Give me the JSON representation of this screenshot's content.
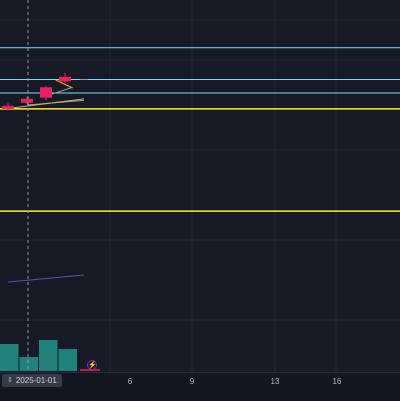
{
  "chart_data": {
    "type": "candlestick",
    "x_axis": {
      "tick_labels": [
        "6",
        "9",
        "13",
        "16"
      ],
      "crosshair_label": "2025-01-01"
    },
    "candles": [
      {
        "open": 91.0,
        "high": 92.4,
        "low": 88.6,
        "close": 89.4
      },
      {
        "open": 94.6,
        "high": 95.6,
        "low": 92.0,
        "close": 92.6
      },
      {
        "open": 100.6,
        "high": 101.4,
        "low": 93.8,
        "close": 95.2
      },
      {
        "open": 106.0,
        "high": 108.0,
        "low": 102.6,
        "close": 103.6
      }
    ],
    "horizontal_lines": [
      {
        "value": 121.0,
        "color": "#80d8ff"
      },
      {
        "value": 104.6,
        "color": "#80d8ff"
      },
      {
        "value": 97.6,
        "color": "#80d8ff"
      },
      {
        "value": 89.4,
        "color": "#ffeb3b"
      },
      {
        "value": 36.6,
        "color": "#ffeb3b"
      }
    ],
    "moving_averages": [
      {
        "color": "#ffa726",
        "points": [
          [
            2.5,
            104.4
          ],
          [
            3.4,
            100.2
          ]
        ]
      },
      {
        "color": "#9e9e9e",
        "points": [
          [
            2.3,
            97.0
          ],
          [
            3.4,
            100.6
          ]
        ]
      },
      {
        "color": "#9e9e9e",
        "points": [
          [
            1.0,
            91.4
          ],
          [
            4.0,
            93.8
          ]
        ]
      },
      {
        "color": "#c9b458",
        "points": [
          [
            0.0,
            89.6
          ],
          [
            4.0,
            94.6
          ]
        ]
      },
      {
        "color": "#5c4db8",
        "points": [
          [
            0.0,
            0.0
          ],
          [
            4.0,
            3.6
          ]
        ]
      }
    ],
    "volume": {
      "values": [
        27,
        14,
        31,
        22
      ],
      "color": "#26a69a"
    },
    "colors": {
      "background": "#161a25",
      "grid": "#232733",
      "bearish": "#e91e63",
      "crosshair": "#9598a1"
    }
  },
  "toolbar": {
    "flash_icon": "lightning-icon"
  }
}
